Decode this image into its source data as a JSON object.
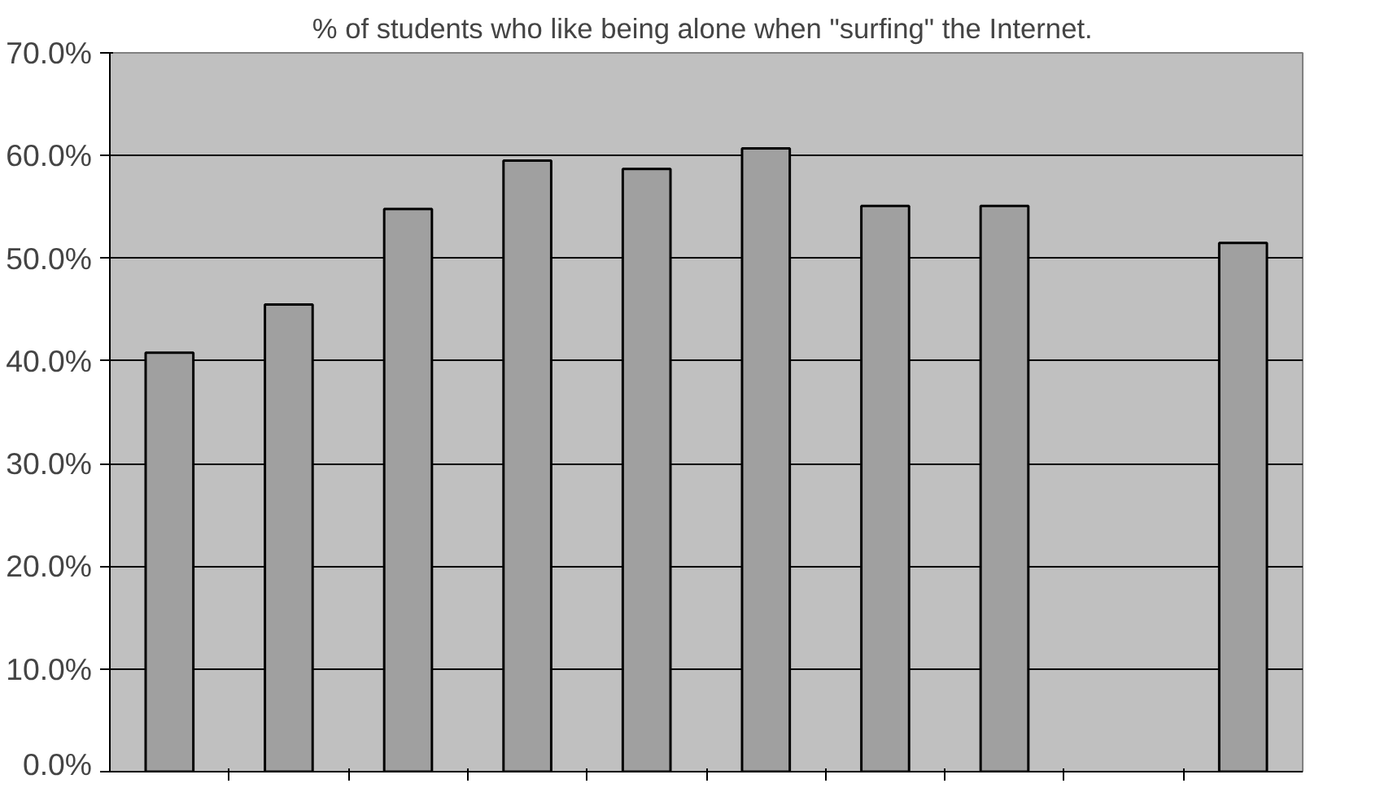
{
  "chart_data": {
    "type": "bar",
    "title": "% of students who like being alone when  \"surfing\" the Internet.",
    "categories": [
      null,
      null,
      null,
      null,
      null,
      null,
      null,
      null,
      null,
      null
    ],
    "values": [
      40.8,
      45.5,
      54.8,
      59.5,
      58.7,
      60.7,
      55.1,
      55.1,
      null,
      51.5
    ],
    "color": "#a0a0a0",
    "ylim": [
      0,
      70
    ],
    "yticks": [
      {
        "value": 0,
        "label": "0.0%"
      },
      {
        "value": 10,
        "label": "10.0%"
      },
      {
        "value": 20,
        "label": "20.0%"
      },
      {
        "value": 30,
        "label": "30.0%"
      },
      {
        "value": 40,
        "label": "40.0%"
      },
      {
        "value": 50,
        "label": "50.0%"
      },
      {
        "value": 60,
        "label": "60.0%"
      },
      {
        "value": 70,
        "label": "70.0%"
      }
    ],
    "grid": "y"
  }
}
